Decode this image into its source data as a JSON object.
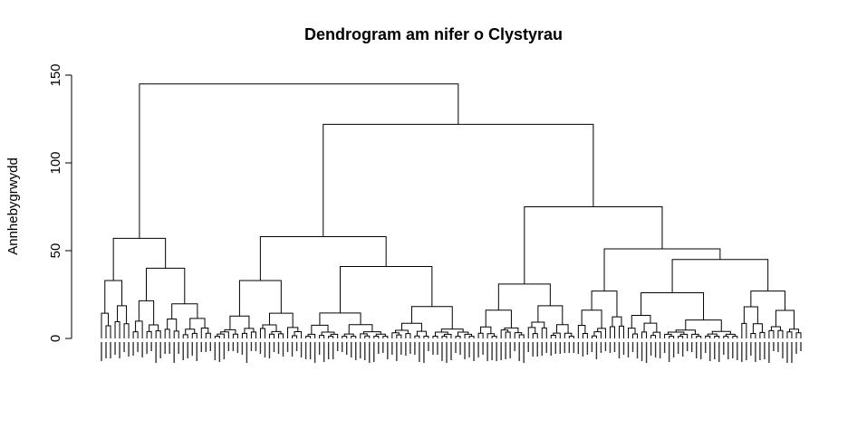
{
  "chart_data": {
    "type": "dendrogram",
    "title": "Dendrogram am nifer o Clystyrau",
    "ylabel": "Annhebygrwydd",
    "xlabel": "",
    "ylim": [
      0,
      150
    ],
    "yticks": [
      0,
      50,
      100,
      150
    ],
    "n_leaves": 155,
    "merges": [
      {
        "left": "A",
        "right": "B",
        "height": 145
      },
      {
        "left": "A1",
        "right": "A2",
        "height": 57
      },
      {
        "left": "B1",
        "right": "B2",
        "height": 122
      },
      {
        "left": "B1a",
        "right": "B1b",
        "height": 58
      },
      {
        "left": "B2a",
        "right": "B2b",
        "height": 75
      },
      {
        "left": "B2b1",
        "right": "B2b2",
        "height": 51
      },
      {
        "left": "B2b2a",
        "right": "B2b2b",
        "height": 45
      }
    ]
  }
}
